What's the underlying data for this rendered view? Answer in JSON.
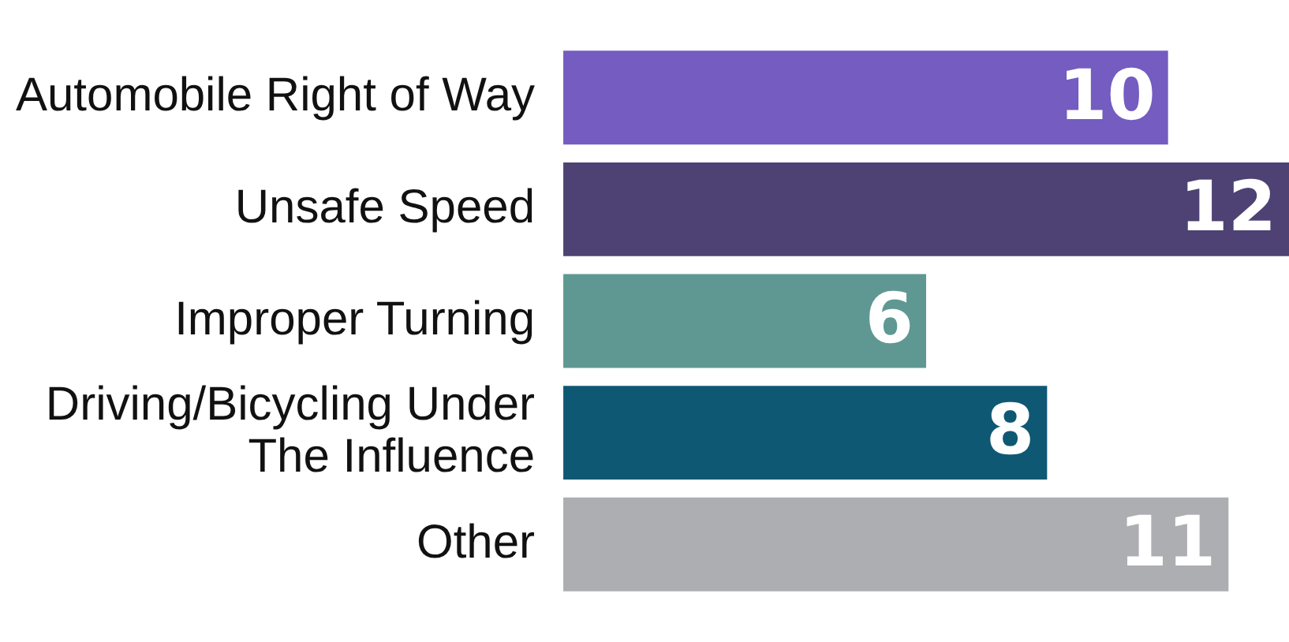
{
  "chart_data": {
    "type": "bar",
    "orientation": "horizontal",
    "data_labels": true,
    "legend": false,
    "categories": [
      "Automobile Right of Way",
      "Unsafe Speed",
      "Improper Turning",
      "Driving/Bicycling Under The Influence",
      "Other"
    ],
    "values": [
      10,
      12,
      6,
      8,
      11
    ],
    "colors": [
      "#745cc0",
      "#4d4273",
      "#5f9893",
      "#0f5873",
      "#adaeb2"
    ]
  }
}
